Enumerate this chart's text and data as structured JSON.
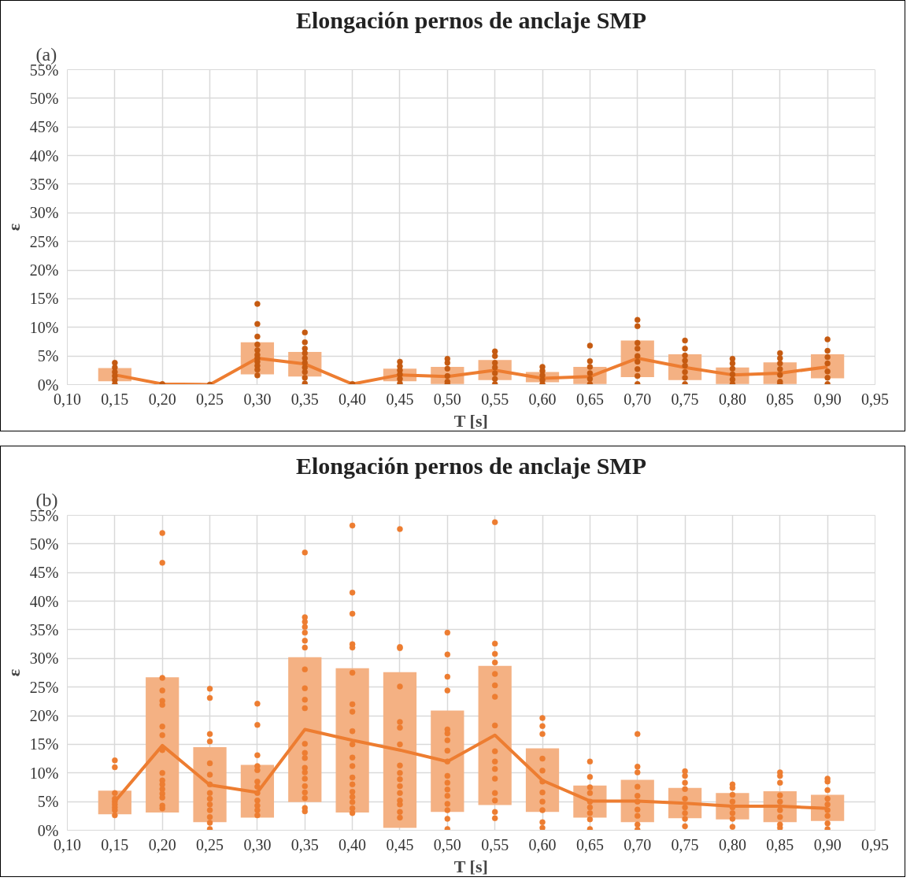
{
  "chart_data": [
    {
      "type": "bar",
      "title": "Elongación pernos de anclaje SMP",
      "xlabel": "T [s]",
      "ylabel": "ε",
      "annotations": [
        "(a)"
      ],
      "grid": true,
      "xlim": [
        0.1,
        0.95
      ],
      "ylim": [
        0,
        55
      ],
      "xticks": [
        {
          "value": 0.1,
          "label": "0,10"
        },
        {
          "value": 0.15,
          "label": "0,15"
        },
        {
          "value": 0.2,
          "label": "0,20"
        },
        {
          "value": 0.25,
          "label": "0,25"
        },
        {
          "value": 0.3,
          "label": "0,30"
        },
        {
          "value": 0.35,
          "label": "0,35"
        },
        {
          "value": 0.4,
          "label": "0,40"
        },
        {
          "value": 0.45,
          "label": "0,45"
        },
        {
          "value": 0.5,
          "label": "0,50"
        },
        {
          "value": 0.55,
          "label": "0,55"
        },
        {
          "value": 0.6,
          "label": "0,60"
        },
        {
          "value": 0.65,
          "label": "0,65"
        },
        {
          "value": 0.7,
          "label": "0,70"
        },
        {
          "value": 0.75,
          "label": "0,75"
        },
        {
          "value": 0.8,
          "label": "0,80"
        },
        {
          "value": 0.85,
          "label": "0,85"
        },
        {
          "value": 0.9,
          "label": "0,90"
        },
        {
          "value": 0.95,
          "label": "0,95"
        }
      ],
      "yticks": [
        {
          "value": 0,
          "label": "0%"
        },
        {
          "value": 5,
          "label": "5%"
        },
        {
          "value": 10,
          "label": "10%"
        },
        {
          "value": 15,
          "label": "15%"
        },
        {
          "value": 20,
          "label": "20%"
        },
        {
          "value": 25,
          "label": "25%"
        },
        {
          "value": 30,
          "label": "30%"
        },
        {
          "value": 35,
          "label": "35%"
        },
        {
          "value": 40,
          "label": "40%"
        },
        {
          "value": 45,
          "label": "45%"
        },
        {
          "value": 50,
          "label": "50%"
        },
        {
          "value": 55,
          "label": "55%"
        }
      ],
      "series": [
        {
          "color": "#f4b183",
          "x": [
            0.15,
            0.2,
            0.25,
            0.3,
            0.35,
            0.4,
            0.45,
            0.5,
            0.55,
            0.6,
            0.65,
            0.7,
            0.75,
            0.8,
            0.85,
            0.9
          ],
          "base": [
            0.6,
            null,
            null,
            1.8,
            1.4,
            null,
            0.6,
            0.1,
            0.8,
            0.4,
            0.1,
            1.3,
            0.8,
            0.1,
            0.1,
            1.1
          ],
          "values": [
            2.3,
            null,
            null,
            5.6,
            4.3,
            null,
            2.2,
            3.0,
            3.5,
            1.8,
            3.0,
            6.4,
            4.5,
            2.9,
            3.8,
            4.2
          ]
        },
        {
          "type": "scatter",
          "marker": "circle",
          "color": "#c55a11",
          "x": [
            0.15,
            0.15,
            0.15,
            0.15,
            0.15,
            0.15,
            0.2,
            0.25,
            0.3,
            0.3,
            0.3,
            0.3,
            0.3,
            0.3,
            0.3,
            0.3,
            0.3,
            0.3,
            0.3,
            0.35,
            0.35,
            0.35,
            0.35,
            0.35,
            0.35,
            0.35,
            0.35,
            0.35,
            0.35,
            0.4,
            0.45,
            0.45,
            0.45,
            0.45,
            0.45,
            0.45,
            0.5,
            0.5,
            0.5,
            0.5,
            0.5,
            0.5,
            0.55,
            0.55,
            0.55,
            0.55,
            0.55,
            0.55,
            0.55,
            0.6,
            0.6,
            0.6,
            0.6,
            0.6,
            0.65,
            0.65,
            0.65,
            0.65,
            0.65,
            0.65,
            0.7,
            0.7,
            0.7,
            0.7,
            0.7,
            0.7,
            0.7,
            0.7,
            0.7,
            0.75,
            0.75,
            0.75,
            0.75,
            0.75,
            0.75,
            0.75,
            0.75,
            0.8,
            0.8,
            0.8,
            0.8,
            0.8,
            0.8,
            0.85,
            0.85,
            0.85,
            0.85,
            0.85,
            0.85,
            0.85,
            0.9,
            0.9,
            0.9,
            0.9,
            0.9,
            0.9,
            0.9
          ],
          "values": [
            3.8,
            3.0,
            2.2,
            1.5,
            0.8,
            0.1,
            0.1,
            0.0,
            14.1,
            10.6,
            8.4,
            7.0,
            6.0,
            5.2,
            4.6,
            4.0,
            3.3,
            2.6,
            1.6,
            9.1,
            7.4,
            6.3,
            5.5,
            4.6,
            3.8,
            3.0,
            2.2,
            1.2,
            0.2,
            0.1,
            4.0,
            3.2,
            2.5,
            1.8,
            1.0,
            0.2,
            4.5,
            3.8,
            2.8,
            1.5,
            0.5,
            0.1,
            5.8,
            5.0,
            3.8,
            3.0,
            2.0,
            1.0,
            0.1,
            3.1,
            2.4,
            1.6,
            0.8,
            0.1,
            6.8,
            4.1,
            3.1,
            2.0,
            1.0,
            0.1,
            11.3,
            10.2,
            7.3,
            6.3,
            5.0,
            4.0,
            2.7,
            1.5,
            0.1,
            7.7,
            6.3,
            5.1,
            4.2,
            3.3,
            2.2,
            1.2,
            0.1,
            4.5,
            3.7,
            2.8,
            1.8,
            0.9,
            0.1,
            5.5,
            4.6,
            3.7,
            2.7,
            1.7,
            0.5,
            0.1,
            7.9,
            5.9,
            4.8,
            3.7,
            2.3,
            1.2,
            0.1
          ]
        },
        {
          "type": "line",
          "line_style": "solid",
          "color": "#ed7d31",
          "x": [
            0.15,
            0.2,
            0.25,
            0.3,
            0.35,
            0.4,
            0.45,
            0.5,
            0.55,
            0.6,
            0.65,
            0.7,
            0.75,
            0.8,
            0.85,
            0.9
          ],
          "values": [
            1.7,
            0.1,
            0.0,
            4.6,
            3.6,
            0.1,
            1.7,
            1.4,
            2.5,
            1.1,
            1.4,
            4.6,
            3.0,
            1.7,
            2.0,
            3.1
          ]
        }
      ]
    },
    {
      "type": "bar",
      "title": "Elongación pernos de anclaje SMP",
      "xlabel": "T [s]",
      "ylabel": "ε",
      "annotations": [
        "(b)"
      ],
      "grid": true,
      "xlim": [
        0.1,
        0.95
      ],
      "ylim": [
        0,
        55
      ],
      "xticks": [
        {
          "value": 0.1,
          "label": "0,10"
        },
        {
          "value": 0.15,
          "label": "0,15"
        },
        {
          "value": 0.2,
          "label": "0,20"
        },
        {
          "value": 0.25,
          "label": "0,25"
        },
        {
          "value": 0.3,
          "label": "0,30"
        },
        {
          "value": 0.35,
          "label": "0,35"
        },
        {
          "value": 0.4,
          "label": "0,40"
        },
        {
          "value": 0.45,
          "label": "0,45"
        },
        {
          "value": 0.5,
          "label": "0,50"
        },
        {
          "value": 0.55,
          "label": "0,55"
        },
        {
          "value": 0.6,
          "label": "0,60"
        },
        {
          "value": 0.65,
          "label": "0,65"
        },
        {
          "value": 0.7,
          "label": "0,70"
        },
        {
          "value": 0.75,
          "label": "0,75"
        },
        {
          "value": 0.8,
          "label": "0,80"
        },
        {
          "value": 0.85,
          "label": "0,85"
        },
        {
          "value": 0.9,
          "label": "0,90"
        },
        {
          "value": 0.95,
          "label": "0,95"
        }
      ],
      "yticks": [
        {
          "value": 0,
          "label": "0%"
        },
        {
          "value": 5,
          "label": "5%"
        },
        {
          "value": 10,
          "label": "10%"
        },
        {
          "value": 15,
          "label": "15%"
        },
        {
          "value": 20,
          "label": "20%"
        },
        {
          "value": 25,
          "label": "25%"
        },
        {
          "value": 30,
          "label": "30%"
        },
        {
          "value": 35,
          "label": "35%"
        },
        {
          "value": 40,
          "label": "40%"
        },
        {
          "value": 45,
          "label": "45%"
        },
        {
          "value": 50,
          "label": "50%"
        },
        {
          "value": 55,
          "label": "55%"
        }
      ],
      "series": [
        {
          "color": "#f4b183",
          "x": [
            0.15,
            0.2,
            0.25,
            0.3,
            0.35,
            0.4,
            0.45,
            0.5,
            0.55,
            0.6,
            0.65,
            0.7,
            0.75,
            0.8,
            0.85,
            0.9
          ],
          "base": [
            2.8,
            3.1,
            1.4,
            2.2,
            4.9,
            3.1,
            0.4,
            3.2,
            4.4,
            3.2,
            2.2,
            1.4,
            2.1,
            1.9,
            1.4,
            1.6
          ],
          "values": [
            4.1,
            23.6,
            13.1,
            9.2,
            25.3,
            25.2,
            27.2,
            17.7,
            24.3,
            11.1,
            5.6,
            7.4,
            5.3,
            4.6,
            5.4,
            4.6
          ]
        },
        {
          "type": "scatter",
          "marker": "circle",
          "color": "#ed7d31",
          "x": [
            0.15,
            0.15,
            0.15,
            0.15,
            0.15,
            0.15,
            0.15,
            0.15,
            0.15,
            0.2,
            0.2,
            0.2,
            0.2,
            0.2,
            0.2,
            0.2,
            0.2,
            0.2,
            0.2,
            0.2,
            0.2,
            0.2,
            0.2,
            0.2,
            0.2,
            0.2,
            0.25,
            0.25,
            0.25,
            0.25,
            0.25,
            0.25,
            0.25,
            0.25,
            0.25,
            0.25,
            0.25,
            0.25,
            0.25,
            0.25,
            0.3,
            0.3,
            0.3,
            0.3,
            0.3,
            0.3,
            0.3,
            0.3,
            0.3,
            0.3,
            0.3,
            0.3,
            0.35,
            0.35,
            0.35,
            0.35,
            0.35,
            0.35,
            0.35,
            0.35,
            0.35,
            0.35,
            0.35,
            0.35,
            0.35,
            0.35,
            0.35,
            0.35,
            0.35,
            0.35,
            0.35,
            0.35,
            0.35,
            0.35,
            0.4,
            0.4,
            0.4,
            0.4,
            0.4,
            0.4,
            0.4,
            0.4,
            0.4,
            0.4,
            0.4,
            0.4,
            0.4,
            0.4,
            0.4,
            0.4,
            0.4,
            0.4,
            0.4,
            0.45,
            0.45,
            0.45,
            0.45,
            0.45,
            0.45,
            0.45,
            0.45,
            0.45,
            0.45,
            0.45,
            0.45,
            0.45,
            0.45,
            0.45,
            0.45,
            0.5,
            0.5,
            0.5,
            0.5,
            0.5,
            0.5,
            0.5,
            0.5,
            0.5,
            0.5,
            0.5,
            0.5,
            0.5,
            0.5,
            0.5,
            0.5,
            0.5,
            0.55,
            0.55,
            0.55,
            0.55,
            0.55,
            0.55,
            0.55,
            0.55,
            0.55,
            0.55,
            0.55,
            0.55,
            0.55,
            0.55,
            0.55,
            0.55,
            0.6,
            0.6,
            0.6,
            0.6,
            0.6,
            0.6,
            0.6,
            0.6,
            0.6,
            0.6,
            0.6,
            0.65,
            0.65,
            0.65,
            0.65,
            0.65,
            0.65,
            0.65,
            0.65,
            0.65,
            0.7,
            0.7,
            0.7,
            0.7,
            0.7,
            0.7,
            0.7,
            0.7,
            0.7,
            0.7,
            0.75,
            0.75,
            0.75,
            0.75,
            0.75,
            0.75,
            0.75,
            0.75,
            0.75,
            0.8,
            0.8,
            0.8,
            0.8,
            0.8,
            0.8,
            0.8,
            0.8,
            0.85,
            0.85,
            0.85,
            0.85,
            0.85,
            0.85,
            0.85,
            0.85,
            0.85,
            0.9,
            0.9,
            0.9,
            0.9,
            0.9,
            0.9,
            0.9,
            0.9,
            0.9
          ],
          "values": [
            12.2,
            11.0,
            6.5,
            5.5,
            5.0,
            4.5,
            4.0,
            3.5,
            2.6,
            51.9,
            46.7,
            26.6,
            24.4,
            22.6,
            21.9,
            18.1,
            16.6,
            14.0,
            10.0,
            8.7,
            8.0,
            7.2,
            6.4,
            5.7,
            4.3,
            3.8,
            24.7,
            23.1,
            16.8,
            15.5,
            11.7,
            9.7,
            8.0,
            6.5,
            5.5,
            4.5,
            3.5,
            2.3,
            1.3,
            0.2,
            22.1,
            18.4,
            13.1,
            11.2,
            10.5,
            8.5,
            7.6,
            6.5,
            5.2,
            4.3,
            3.5,
            2.6,
            48.5,
            37.2,
            36.4,
            35.5,
            34.5,
            33.1,
            31.9,
            28.1,
            24.8,
            22.8,
            21.3,
            15.1,
            13.5,
            12.6,
            10.9,
            10.1,
            9.0,
            7.7,
            6.6,
            5.6,
            3.9,
            3.3,
            53.2,
            41.5,
            37.8,
            32.5,
            31.9,
            27.5,
            22.0,
            20.7,
            17.3,
            15.0,
            12.7,
            11.2,
            9.2,
            8.0,
            6.7,
            5.8,
            4.9,
            3.8,
            3.0,
            52.6,
            32.0,
            31.8,
            25.1,
            18.9,
            17.9,
            15.0,
            11.3,
            10.0,
            8.9,
            7.7,
            6.5,
            5.2,
            4.5,
            3.2,
            2.2,
            34.5,
            30.7,
            26.8,
            24.4,
            17.6,
            16.9,
            15.7,
            13.9,
            12.0,
            9.5,
            8.3,
            7.1,
            6.0,
            4.6,
            3.5,
            2.0,
            0.2,
            53.8,
            32.6,
            30.8,
            29.3,
            27.3,
            25.3,
            23.3,
            18.3,
            13.8,
            12.0,
            10.7,
            9.0,
            6.5,
            5.2,
            3.2,
            2.1,
            19.6,
            18.2,
            16.8,
            12.5,
            10.4,
            8.5,
            6.6,
            5.0,
            3.5,
            1.4,
            0.4,
            12.0,
            9.3,
            7.5,
            6.5,
            5.0,
            4.0,
            3.0,
            1.9,
            0.2,
            16.8,
            11.1,
            10.1,
            7.6,
            6.0,
            5.0,
            3.6,
            2.5,
            1.0,
            0.1,
            10.3,
            9.5,
            8.3,
            7.2,
            5.5,
            4.0,
            3.0,
            2.0,
            0.7,
            8.0,
            7.4,
            6.2,
            5.0,
            4.0,
            3.0,
            2.0,
            0.6,
            10.1,
            9.5,
            8.3,
            6.1,
            5.0,
            3.5,
            2.3,
            1.0,
            0.4,
            9.0,
            8.5,
            7.0,
            5.5,
            4.5,
            3.5,
            2.5,
            1.2,
            0.2
          ]
        },
        {
          "type": "line",
          "line_style": "solid",
          "color": "#ed7d31",
          "x": [
            0.15,
            0.2,
            0.25,
            0.3,
            0.35,
            0.4,
            0.45,
            0.5,
            0.55,
            0.6,
            0.65,
            0.7,
            0.75,
            0.8,
            0.85,
            0.9
          ],
          "values": [
            5.0,
            14.8,
            7.9,
            6.6,
            17.6,
            15.7,
            14.0,
            12.0,
            16.6,
            8.7,
            5.1,
            5.1,
            4.7,
            4.2,
            4.2,
            3.8
          ]
        }
      ]
    }
  ]
}
